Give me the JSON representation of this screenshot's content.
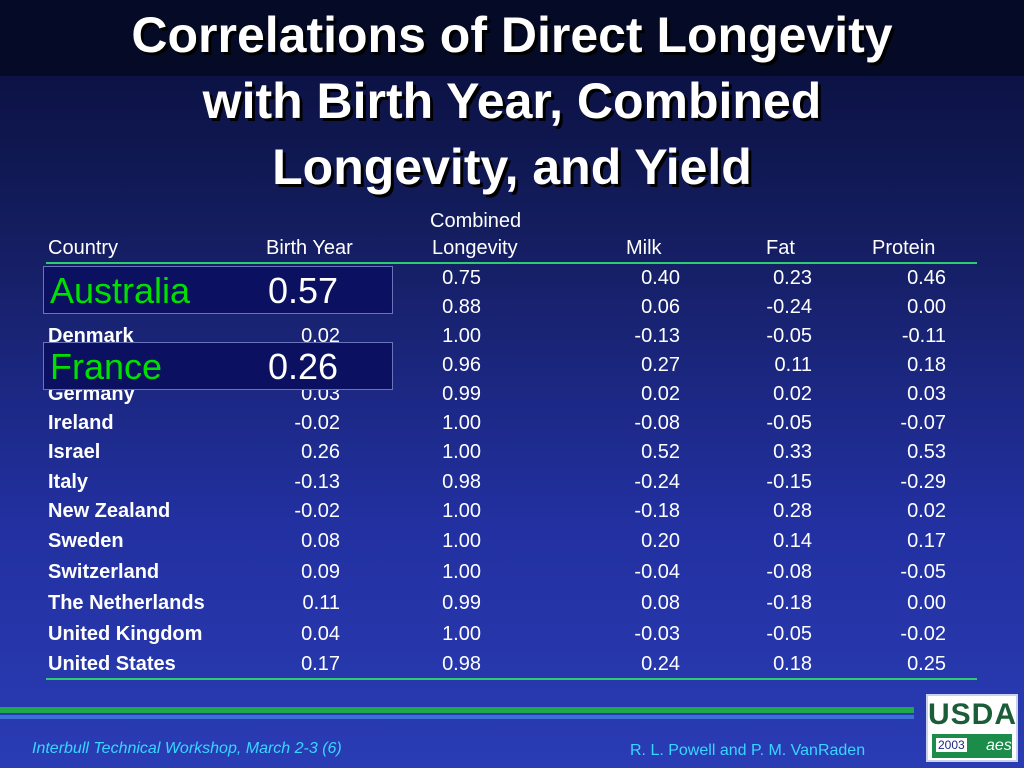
{
  "title": {
    "lines": [
      "Correlations of Direct Longevity",
      "with Birth Year, Combined",
      "Longevity, and Yield"
    ]
  },
  "table": {
    "headers": {
      "country": "Country",
      "birth_year": "Birth Year",
      "combined_1": "Combined",
      "combined_2": "Longevity",
      "milk": "Milk",
      "fat": "Fat",
      "protein": "Protein"
    },
    "rows": [
      {
        "country": "",
        "birth_year": "",
        "combined": "0.75",
        "milk": "0.40",
        "fat": "0.23",
        "protein": "0.46"
      },
      {
        "country": "",
        "birth_year": "",
        "combined": "0.88",
        "milk": "0.06",
        "fat": "-0.24",
        "protein": "0.00"
      },
      {
        "country": "Denmark",
        "birth_year": "0.02",
        "combined": "1.00",
        "milk": "-0.13",
        "fat": "-0.05",
        "protein": "-0.11"
      },
      {
        "country": "",
        "birth_year": "",
        "combined": "0.96",
        "milk": "0.27",
        "fat": "0.11",
        "protein": "0.18"
      },
      {
        "country": "Germany",
        "birth_year": "0.03",
        "combined": "0.99",
        "milk": "0.02",
        "fat": "0.02",
        "protein": "0.03"
      },
      {
        "country": "Ireland",
        "birth_year": "-0.02",
        "combined": "1.00",
        "milk": "-0.08",
        "fat": "-0.05",
        "protein": "-0.07"
      },
      {
        "country": "Israel",
        "birth_year": "0.26",
        "combined": "1.00",
        "milk": "0.52",
        "fat": "0.33",
        "protein": "0.53"
      },
      {
        "country": "Italy",
        "birth_year": "-0.13",
        "combined": "0.98",
        "milk": "-0.24",
        "fat": "-0.15",
        "protein": "-0.29"
      },
      {
        "country": "New Zealand",
        "birth_year": "-0.02",
        "combined": "1.00",
        "milk": "-0.18",
        "fat": "0.28",
        "protein": "0.02"
      },
      {
        "country": "Sweden",
        "birth_year": "0.08",
        "combined": "1.00",
        "milk": "0.20",
        "fat": "0.14",
        "protein": "0.17"
      },
      {
        "country": "Switzerland",
        "birth_year": "0.09",
        "combined": "1.00",
        "milk": "-0.04",
        "fat": "-0.08",
        "protein": "-0.05"
      },
      {
        "country": "The Netherlands",
        "birth_year": "0.11",
        "combined": "0.99",
        "milk": "0.08",
        "fat": "-0.18",
        "protein": "0.00"
      },
      {
        "country": "United Kingdom",
        "birth_year": "0.04",
        "combined": "1.00",
        "milk": "-0.03",
        "fat": "-0.05",
        "protein": "-0.02"
      },
      {
        "country": "United States",
        "birth_year": "0.17",
        "combined": "0.98",
        "milk": "0.24",
        "fat": "0.18",
        "protein": "0.25"
      }
    ]
  },
  "callouts": [
    {
      "country": "Australia",
      "value": "0.57"
    },
    {
      "country": "France",
      "value": "0.26"
    }
  ],
  "footer": {
    "left": "Interbull Technical Workshop, March 2-3 (6)",
    "right": "R. L. Powell  and P. M. VanRaden"
  },
  "logo": {
    "text": "USDA",
    "year": "2003",
    "mark": "aes"
  },
  "colors": {
    "accent_green": "#00e000",
    "rule_green": "#2ecc71",
    "footer_text": "#37d7ff"
  }
}
